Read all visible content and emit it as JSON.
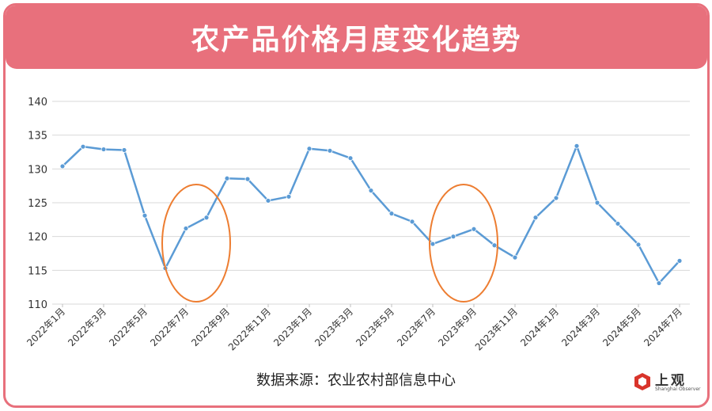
{
  "title": "农产品价格月度变化趋势",
  "source": "数据来源：农业农村部信息中心",
  "logo": {
    "name": "上观",
    "sub": "Shanghai Observer",
    "color": "#d9342b"
  },
  "colors": {
    "accent": "#e8707c",
    "line": "#5b9bd5",
    "highlight": "#ed7d31",
    "grid": "#d9d9d9"
  },
  "chart_data": {
    "type": "line",
    "title": "农产品价格月度变化趋势",
    "xlabel": "",
    "ylabel": "",
    "ylim": [
      110,
      140
    ],
    "yticks": [
      110,
      115,
      120,
      125,
      130,
      135,
      140
    ],
    "grid": true,
    "x": [
      "2022年1月",
      "2022年2月",
      "2022年3月",
      "2022年4月",
      "2022年5月",
      "2022年6月",
      "2022年7月",
      "2022年8月",
      "2022年9月",
      "2022年10月",
      "2022年11月",
      "2022年12月",
      "2023年1月",
      "2023年2月",
      "2023年3月",
      "2023年4月",
      "2023年5月",
      "2023年6月",
      "2023年7月",
      "2023年8月",
      "2023年9月",
      "2023年10月",
      "2023年11月",
      "2023年12月",
      "2024年1月",
      "2024年2月",
      "2024年3月",
      "2024年4月",
      "2024年5月",
      "2024年6月",
      "2024年7月"
    ],
    "xtick_labels": [
      "2022年1月",
      "2022年3月",
      "2022年5月",
      "2022年7月",
      "2022年9月",
      "2022年11月",
      "2023年1月",
      "2023年3月",
      "2023年5月",
      "2023年7月",
      "2023年9月",
      "2023年11月",
      "2024年1月",
      "2024年3月",
      "2024年5月",
      "2024年7月"
    ],
    "series": [
      {
        "values": [
          130.4,
          133.3,
          132.9,
          132.8,
          123.1,
          115.3,
          121.2,
          122.8,
          128.6,
          128.5,
          125.3,
          125.9,
          133.0,
          132.7,
          131.6,
          126.8,
          123.4,
          122.2,
          118.9,
          120.0,
          121.1,
          118.7,
          116.9,
          122.8,
          125.7,
          133.4,
          125.0,
          121.9,
          118.8,
          113.1,
          116.4
        ]
      }
    ],
    "highlights": [
      {
        "shape": "ellipse",
        "from": "2022年6月",
        "to": "2022年9月"
      },
      {
        "shape": "ellipse",
        "from": "2023年7月",
        "to": "2023年10月"
      }
    ]
  }
}
